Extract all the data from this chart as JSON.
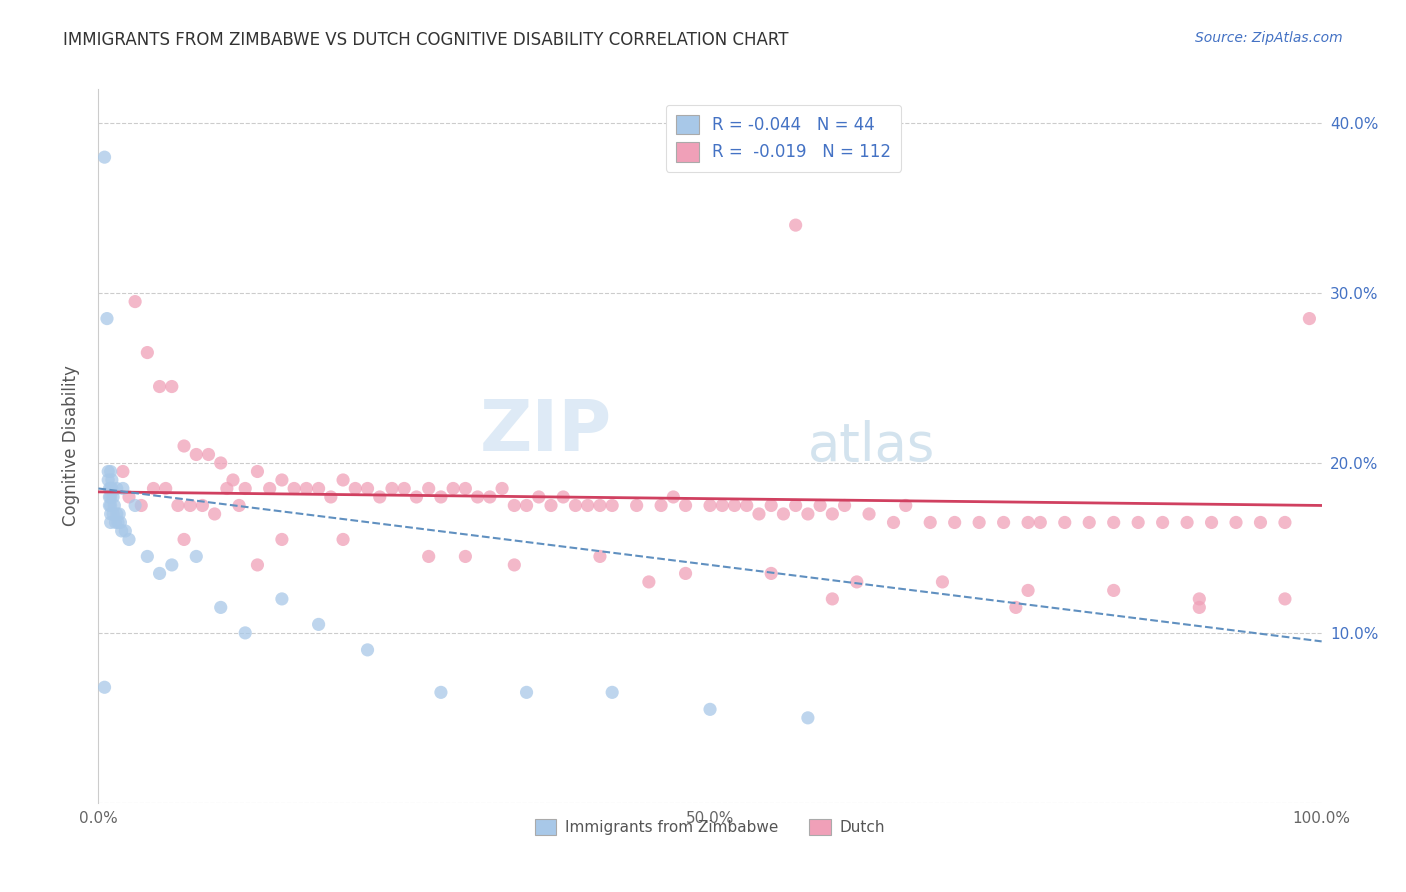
{
  "title": "IMMIGRANTS FROM ZIMBABWE VS DUTCH COGNITIVE DISABILITY CORRELATION CHART",
  "source": "Source: ZipAtlas.com",
  "ylabel": "Cognitive Disability",
  "xlim": [
    0,
    1.0
  ],
  "ylim": [
    0.0,
    0.42
  ],
  "ytick_positions": [
    0.0,
    0.1,
    0.2,
    0.3,
    0.4
  ],
  "ytick_labels": [
    "",
    "10.0%",
    "20.0%",
    "30.0%",
    "40.0%"
  ],
  "xtick_positions": [
    0.0,
    0.5,
    1.0
  ],
  "xtick_labels": [
    "0.0%",
    "50.0%",
    "100.0%"
  ],
  "blue_color": "#a8c8e8",
  "pink_color": "#f0a0b8",
  "trend_blue_color": "#6090c0",
  "trend_pink_color": "#d04060",
  "watermark_zip": "ZIP",
  "watermark_atlas": "atlas",
  "legend_entries": [
    {
      "label": "R = -0.044   N = 44"
    },
    {
      "label": "R =  -0.019   N = 112"
    }
  ],
  "legend_blue_color": "#a8c8e8",
  "legend_pink_color": "#f0a0b8",
  "bottom_legend": [
    "Immigrants from Zimbabwe",
    "Dutch"
  ],
  "blue_x": [
    0.005,
    0.007,
    0.008,
    0.008,
    0.009,
    0.009,
    0.009,
    0.01,
    0.01,
    0.01,
    0.01,
    0.01,
    0.01,
    0.011,
    0.011,
    0.012,
    0.012,
    0.013,
    0.014,
    0.015,
    0.015,
    0.016,
    0.017,
    0.018,
    0.019,
    0.02,
    0.022,
    0.025,
    0.03,
    0.04,
    0.05,
    0.06,
    0.08,
    0.1,
    0.12,
    0.15,
    0.18,
    0.22,
    0.28,
    0.35,
    0.42,
    0.5,
    0.58,
    0.005
  ],
  "blue_y": [
    0.38,
    0.285,
    0.195,
    0.19,
    0.185,
    0.18,
    0.175,
    0.195,
    0.185,
    0.18,
    0.175,
    0.17,
    0.165,
    0.19,
    0.185,
    0.18,
    0.17,
    0.175,
    0.165,
    0.185,
    0.17,
    0.165,
    0.17,
    0.165,
    0.16,
    0.185,
    0.16,
    0.155,
    0.175,
    0.145,
    0.135,
    0.14,
    0.145,
    0.115,
    0.1,
    0.12,
    0.105,
    0.09,
    0.065,
    0.065,
    0.065,
    0.055,
    0.05,
    0.068
  ],
  "pink_x": [
    0.02,
    0.025,
    0.03,
    0.035,
    0.04,
    0.045,
    0.05,
    0.055,
    0.06,
    0.065,
    0.07,
    0.075,
    0.08,
    0.085,
    0.09,
    0.095,
    0.1,
    0.105,
    0.11,
    0.115,
    0.12,
    0.13,
    0.14,
    0.15,
    0.16,
    0.17,
    0.18,
    0.19,
    0.2,
    0.21,
    0.22,
    0.23,
    0.24,
    0.25,
    0.26,
    0.27,
    0.28,
    0.29,
    0.3,
    0.31,
    0.32,
    0.33,
    0.34,
    0.35,
    0.36,
    0.37,
    0.38,
    0.39,
    0.4,
    0.41,
    0.42,
    0.44,
    0.46,
    0.47,
    0.48,
    0.5,
    0.51,
    0.52,
    0.53,
    0.54,
    0.55,
    0.56,
    0.57,
    0.58,
    0.59,
    0.6,
    0.61,
    0.63,
    0.65,
    0.66,
    0.68,
    0.7,
    0.72,
    0.74,
    0.76,
    0.77,
    0.79,
    0.81,
    0.83,
    0.85,
    0.87,
    0.89,
    0.91,
    0.93,
    0.95,
    0.97,
    0.07,
    0.13,
    0.2,
    0.27,
    0.34,
    0.41,
    0.48,
    0.55,
    0.62,
    0.69,
    0.76,
    0.83,
    0.9,
    0.97,
    0.15,
    0.3,
    0.45,
    0.6,
    0.75,
    0.9,
    0.57,
    0.99
  ],
  "pink_y": [
    0.195,
    0.18,
    0.295,
    0.175,
    0.265,
    0.185,
    0.245,
    0.185,
    0.245,
    0.175,
    0.21,
    0.175,
    0.205,
    0.175,
    0.205,
    0.17,
    0.2,
    0.185,
    0.19,
    0.175,
    0.185,
    0.195,
    0.185,
    0.19,
    0.185,
    0.185,
    0.185,
    0.18,
    0.19,
    0.185,
    0.185,
    0.18,
    0.185,
    0.185,
    0.18,
    0.185,
    0.18,
    0.185,
    0.185,
    0.18,
    0.18,
    0.185,
    0.175,
    0.175,
    0.18,
    0.175,
    0.18,
    0.175,
    0.175,
    0.175,
    0.175,
    0.175,
    0.175,
    0.18,
    0.175,
    0.175,
    0.175,
    0.175,
    0.175,
    0.17,
    0.175,
    0.17,
    0.175,
    0.17,
    0.175,
    0.17,
    0.175,
    0.17,
    0.165,
    0.175,
    0.165,
    0.165,
    0.165,
    0.165,
    0.165,
    0.165,
    0.165,
    0.165,
    0.165,
    0.165,
    0.165,
    0.165,
    0.165,
    0.165,
    0.165,
    0.165,
    0.155,
    0.14,
    0.155,
    0.145,
    0.14,
    0.145,
    0.135,
    0.135,
    0.13,
    0.13,
    0.125,
    0.125,
    0.12,
    0.12,
    0.155,
    0.145,
    0.13,
    0.12,
    0.115,
    0.115,
    0.34,
    0.285
  ],
  "blue_trend_x": [
    0.0,
    1.0
  ],
  "blue_trend_y": [
    0.185,
    0.095
  ],
  "pink_trend_x": [
    0.0,
    1.0
  ],
  "pink_trend_y": [
    0.183,
    0.175
  ]
}
